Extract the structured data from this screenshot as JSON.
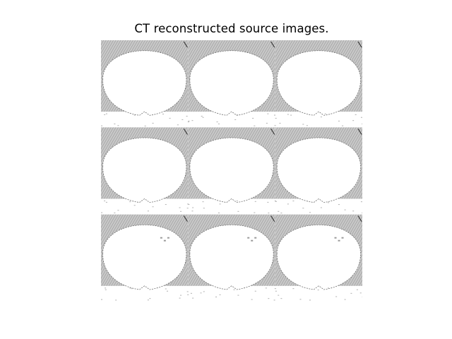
{
  "figure": {
    "title": "CT reconstructed source images."
  },
  "montage": {
    "rows": 3,
    "cols": 3,
    "background_color": "#ffffff",
    "texture_color": "#8f8f8f",
    "body_color": "#ffffff"
  }
}
